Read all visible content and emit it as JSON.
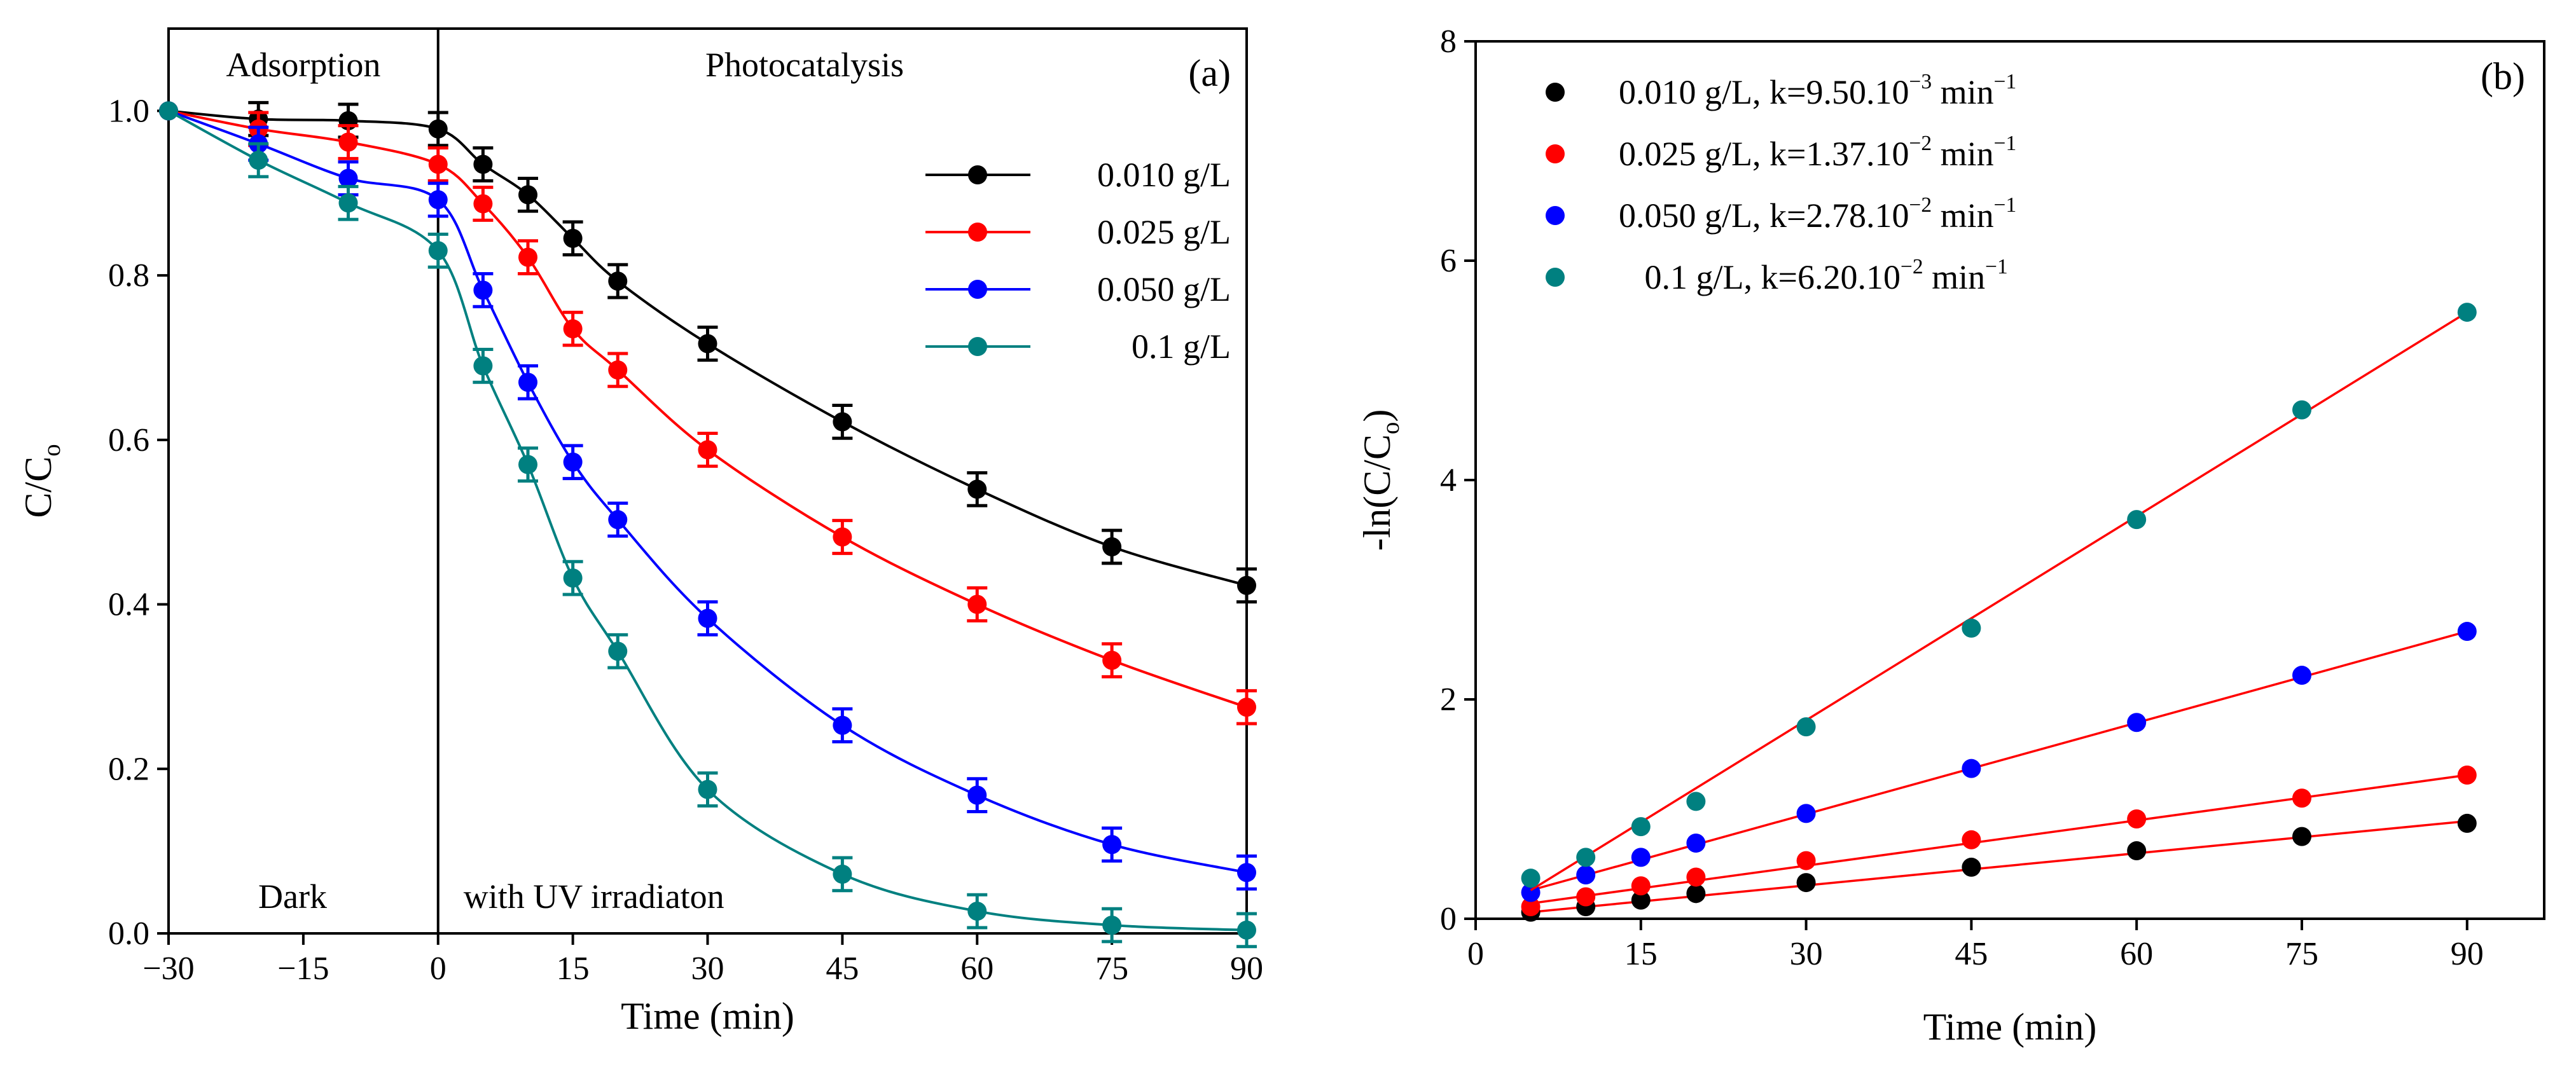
{
  "chart_data": [
    {
      "type": "line",
      "panel_label": "(a)",
      "xlabel": "Time (min)",
      "ylabel": "C/C",
      "ylabel_sub": "o",
      "xlim": [
        -30,
        90
      ],
      "ylim": [
        0,
        1.1
      ],
      "x_ticks": [
        -30,
        -15,
        0,
        15,
        30,
        45,
        60,
        75,
        90
      ],
      "x_tick_labels": [
        "−30",
        "−15",
        "0",
        "15",
        "30",
        "45",
        "60",
        "75",
        "90"
      ],
      "y_ticks": [
        0.0,
        0.2,
        0.4,
        0.6,
        0.8,
        1.0
      ],
      "y_tick_labels": [
        "0.0",
        "0.2",
        "0.4",
        "0.6",
        "0.8",
        "1.0"
      ],
      "divider_x": 0,
      "region_labels": {
        "adsorption": "Adsorption",
        "photocatalysis": "Photocatalysis",
        "dark": "Dark",
        "uv": "with UV irradiaton"
      },
      "legend_position": "top-right",
      "x": [
        -30,
        -20,
        -10,
        0,
        5,
        10,
        15,
        20,
        30,
        45,
        60,
        75,
        90
      ],
      "series": [
        {
          "name": "0.010 g/L",
          "color": "#000000",
          "values": [
            1.0,
            0.99,
            0.988,
            0.978,
            0.935,
            0.898,
            0.845,
            0.793,
            0.717,
            0.622,
            0.54,
            0.47,
            0.423
          ],
          "error": [
            0.0,
            0.02,
            0.02,
            0.02,
            0.02,
            0.02,
            0.02,
            0.02,
            0.02,
            0.02,
            0.02,
            0.02,
            0.02
          ]
        },
        {
          "name": "0.025 g/L",
          "color": "#ff0000",
          "values": [
            1.0,
            0.978,
            0.962,
            0.935,
            0.887,
            0.822,
            0.735,
            0.685,
            0.588,
            0.482,
            0.4,
            0.332,
            0.275
          ],
          "error": [
            0.0,
            0.02,
            0.02,
            0.02,
            0.02,
            0.02,
            0.02,
            0.02,
            0.02,
            0.02,
            0.02,
            0.02,
            0.02
          ]
        },
        {
          "name": "0.050 g/L",
          "color": "#0000ff",
          "values": [
            1.0,
            0.96,
            0.918,
            0.892,
            0.782,
            0.67,
            0.573,
            0.503,
            0.383,
            0.253,
            0.168,
            0.108,
            0.074
          ],
          "error": [
            0.0,
            0.02,
            0.02,
            0.02,
            0.02,
            0.02,
            0.02,
            0.02,
            0.02,
            0.02,
            0.02,
            0.02,
            0.02
          ]
        },
        {
          "name": "0.1 g/L",
          "color": "#008080",
          "values": [
            1.0,
            0.94,
            0.888,
            0.83,
            0.69,
            0.57,
            0.432,
            0.343,
            0.175,
            0.072,
            0.027,
            0.01,
            0.004
          ],
          "error": [
            0.0,
            0.02,
            0.02,
            0.02,
            0.02,
            0.02,
            0.02,
            0.02,
            0.02,
            0.02,
            0.02,
            0.02,
            0.02
          ]
        }
      ]
    },
    {
      "type": "scatter",
      "panel_label": "(b)",
      "xlabel": "Time (min)",
      "ylabel": "-ln(C/C",
      "ylabel_sub": "o",
      "ylabel_end": ")",
      "xlim": [
        0,
        97
      ],
      "ylim": [
        0,
        8
      ],
      "x_ticks": [
        0,
        15,
        30,
        45,
        60,
        75,
        90
      ],
      "x_tick_labels": [
        "0",
        "15",
        "30",
        "45",
        "60",
        "75",
        "90"
      ],
      "y_ticks": [
        0,
        2,
        4,
        6,
        8
      ],
      "y_tick_labels": [
        "0",
        "2",
        "4",
        "6",
        "8"
      ],
      "legend_position": "top-left",
      "fit_color": "#ff0000",
      "x": [
        5,
        10,
        15,
        20,
        30,
        45,
        60,
        75,
        90
      ],
      "series": [
        {
          "name": "0.010 g/L, k=9.50.10",
          "exponent": "−3",
          "unit": " min",
          "unit_exp": "−1",
          "color": "#000000",
          "values": [
            0.06,
            0.11,
            0.17,
            0.23,
            0.33,
            0.47,
            0.62,
            0.75,
            0.87
          ],
          "fit": {
            "x": [
              5,
              90
            ],
            "y": [
              0.06,
              0.89
            ]
          }
        },
        {
          "name": "0.025 g/L, k=1.37.10",
          "exponent": "−2",
          "unit": " min",
          "unit_exp": "−1",
          "color": "#ff0000",
          "values": [
            0.11,
            0.2,
            0.3,
            0.38,
            0.53,
            0.72,
            0.91,
            1.1,
            1.31
          ],
          "fit": {
            "x": [
              5,
              90
            ],
            "y": [
              0.14,
              1.31
            ]
          }
        },
        {
          "name": "0.050 g/L, k=2.78.10",
          "exponent": "−2",
          "unit": " min",
          "unit_exp": "−1",
          "color": "#0000ff",
          "values": [
            0.24,
            0.4,
            0.56,
            0.69,
            0.96,
            1.37,
            1.79,
            2.22,
            2.62
          ],
          "fit": {
            "x": [
              5,
              90
            ],
            "y": [
              0.26,
              2.62
            ]
          }
        },
        {
          "name": "   0.1 g/L, k=6.20.10",
          "exponent": "−2",
          "unit": " min",
          "unit_exp": "−1",
          "color": "#008080",
          "values": [
            0.37,
            0.56,
            0.84,
            1.07,
            1.75,
            2.65,
            3.64,
            4.64,
            5.53
          ],
          "fit": {
            "x": [
              5,
              90
            ],
            "y": [
              0.26,
              5.53
            ]
          }
        }
      ]
    }
  ]
}
